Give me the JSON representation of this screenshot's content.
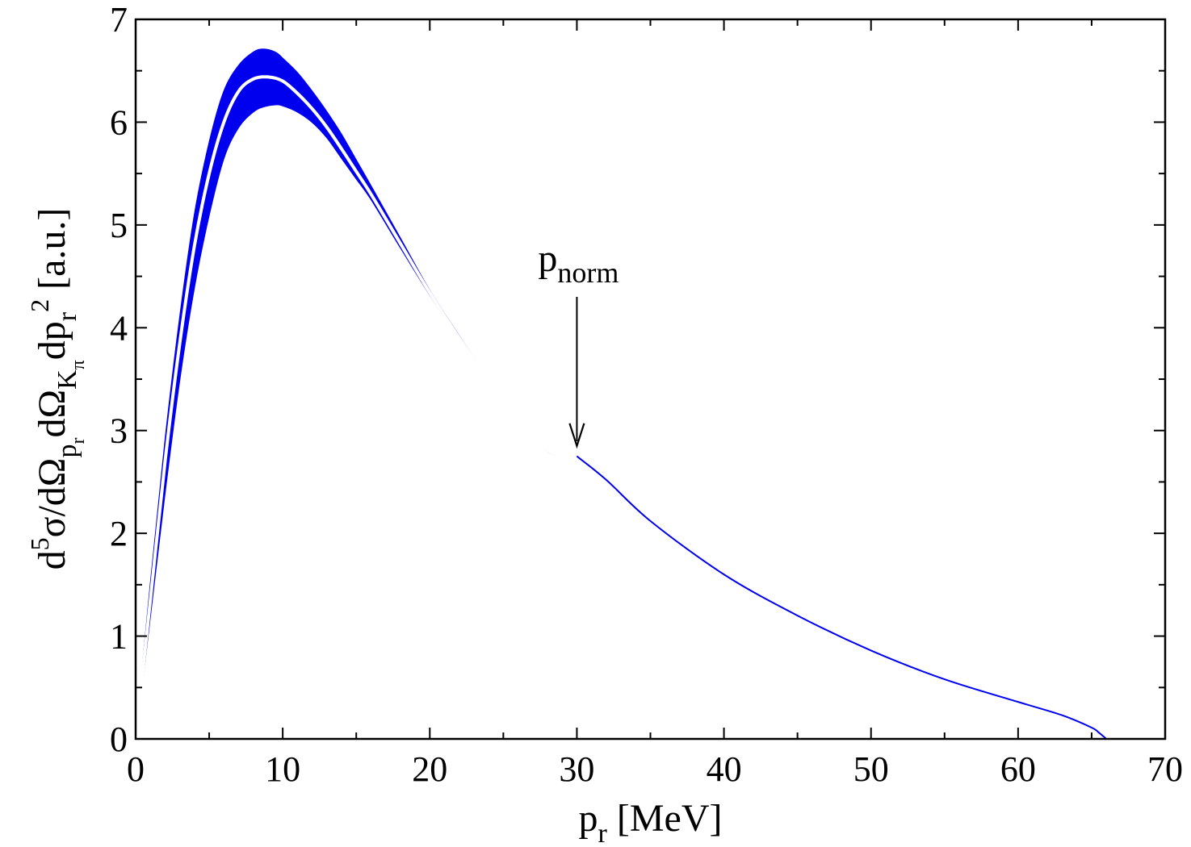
{
  "chart_data": {
    "type": "line",
    "title": "",
    "xlabel": {
      "base": "p",
      "sub": "r",
      "rest": " [MeV]"
    },
    "ylabel": {
      "parts": [
        {
          "t": "d",
          "s": "n"
        },
        {
          "t": "5",
          "s": "sup"
        },
        {
          "t": "σ/dΩ",
          "s": "n"
        },
        {
          "t": "p",
          "s": "sub"
        },
        {
          "t": "r",
          "s": "subsub"
        },
        {
          "t": "dΩ",
          "s": "n"
        },
        {
          "t": "K",
          "s": "sub"
        },
        {
          "t": "π",
          "s": "subsub"
        },
        {
          "t": "dp",
          "s": "n"
        },
        {
          "t": "r",
          "s": "sub"
        },
        {
          "t": "2",
          "s": "sup"
        },
        {
          "t": " [a.u.]",
          "s": "n"
        }
      ]
    },
    "xlim": [
      0,
      70
    ],
    "ylim": [
      0,
      7
    ],
    "x_ticks": [
      0,
      10,
      20,
      30,
      40,
      50,
      60,
      70
    ],
    "y_ticks": [
      0,
      1,
      2,
      3,
      4,
      5,
      6,
      7
    ],
    "grid": false,
    "series_color": "#0000ee",
    "inner_line_color": "#ffffff",
    "band": {
      "x": [
        0,
        1,
        2,
        3,
        4,
        5,
        6,
        7,
        8,
        8.7,
        9.5,
        10,
        11,
        12,
        13,
        14,
        15,
        16,
        18,
        20,
        22,
        24,
        26,
        28,
        30
      ],
      "upper": [
        0,
        1.5,
        2.9,
        4.1,
        5.1,
        5.8,
        6.3,
        6.55,
        6.68,
        6.71,
        6.68,
        6.62,
        6.48,
        6.3,
        6.1,
        5.88,
        5.63,
        5.38,
        4.87,
        4.36,
        3.92,
        3.49,
        3.12,
        2.78,
        2.75
      ],
      "lower": [
        0,
        1.2,
        2.4,
        3.5,
        4.4,
        5.1,
        5.65,
        5.95,
        6.1,
        6.15,
        6.17,
        6.16,
        6.1,
        6.0,
        5.85,
        5.65,
        5.45,
        5.25,
        4.78,
        4.32,
        3.89,
        3.47,
        3.1,
        2.77,
        2.75
      ]
    },
    "central": {
      "x": [
        0,
        1,
        2,
        3,
        4,
        5,
        6,
        7,
        8,
        9,
        10,
        11,
        12,
        13,
        14,
        15,
        16,
        18,
        20,
        22,
        24,
        26,
        28,
        30
      ],
      "y": [
        0,
        1.35,
        2.7,
        3.85,
        4.8,
        5.5,
        6.0,
        6.3,
        6.42,
        6.44,
        6.4,
        6.28,
        6.13,
        5.95,
        5.74,
        5.52,
        5.3,
        4.82,
        4.34,
        3.9,
        3.48,
        3.11,
        2.77,
        2.75
      ]
    },
    "tail": {
      "x": [
        30,
        32,
        35,
        40,
        45,
        50,
        55,
        60,
        63,
        65,
        65.5,
        66
      ],
      "y": [
        2.75,
        2.52,
        2.12,
        1.6,
        1.2,
        0.86,
        0.58,
        0.36,
        0.23,
        0.11,
        0.06,
        0.0
      ]
    },
    "annotation": {
      "label_base": "p",
      "label_sub": "norm",
      "arrow_x": 30,
      "arrow_from_y": 4.3,
      "arrow_to_y": 2.85,
      "label_x": 30,
      "label_y": 4.55
    }
  }
}
